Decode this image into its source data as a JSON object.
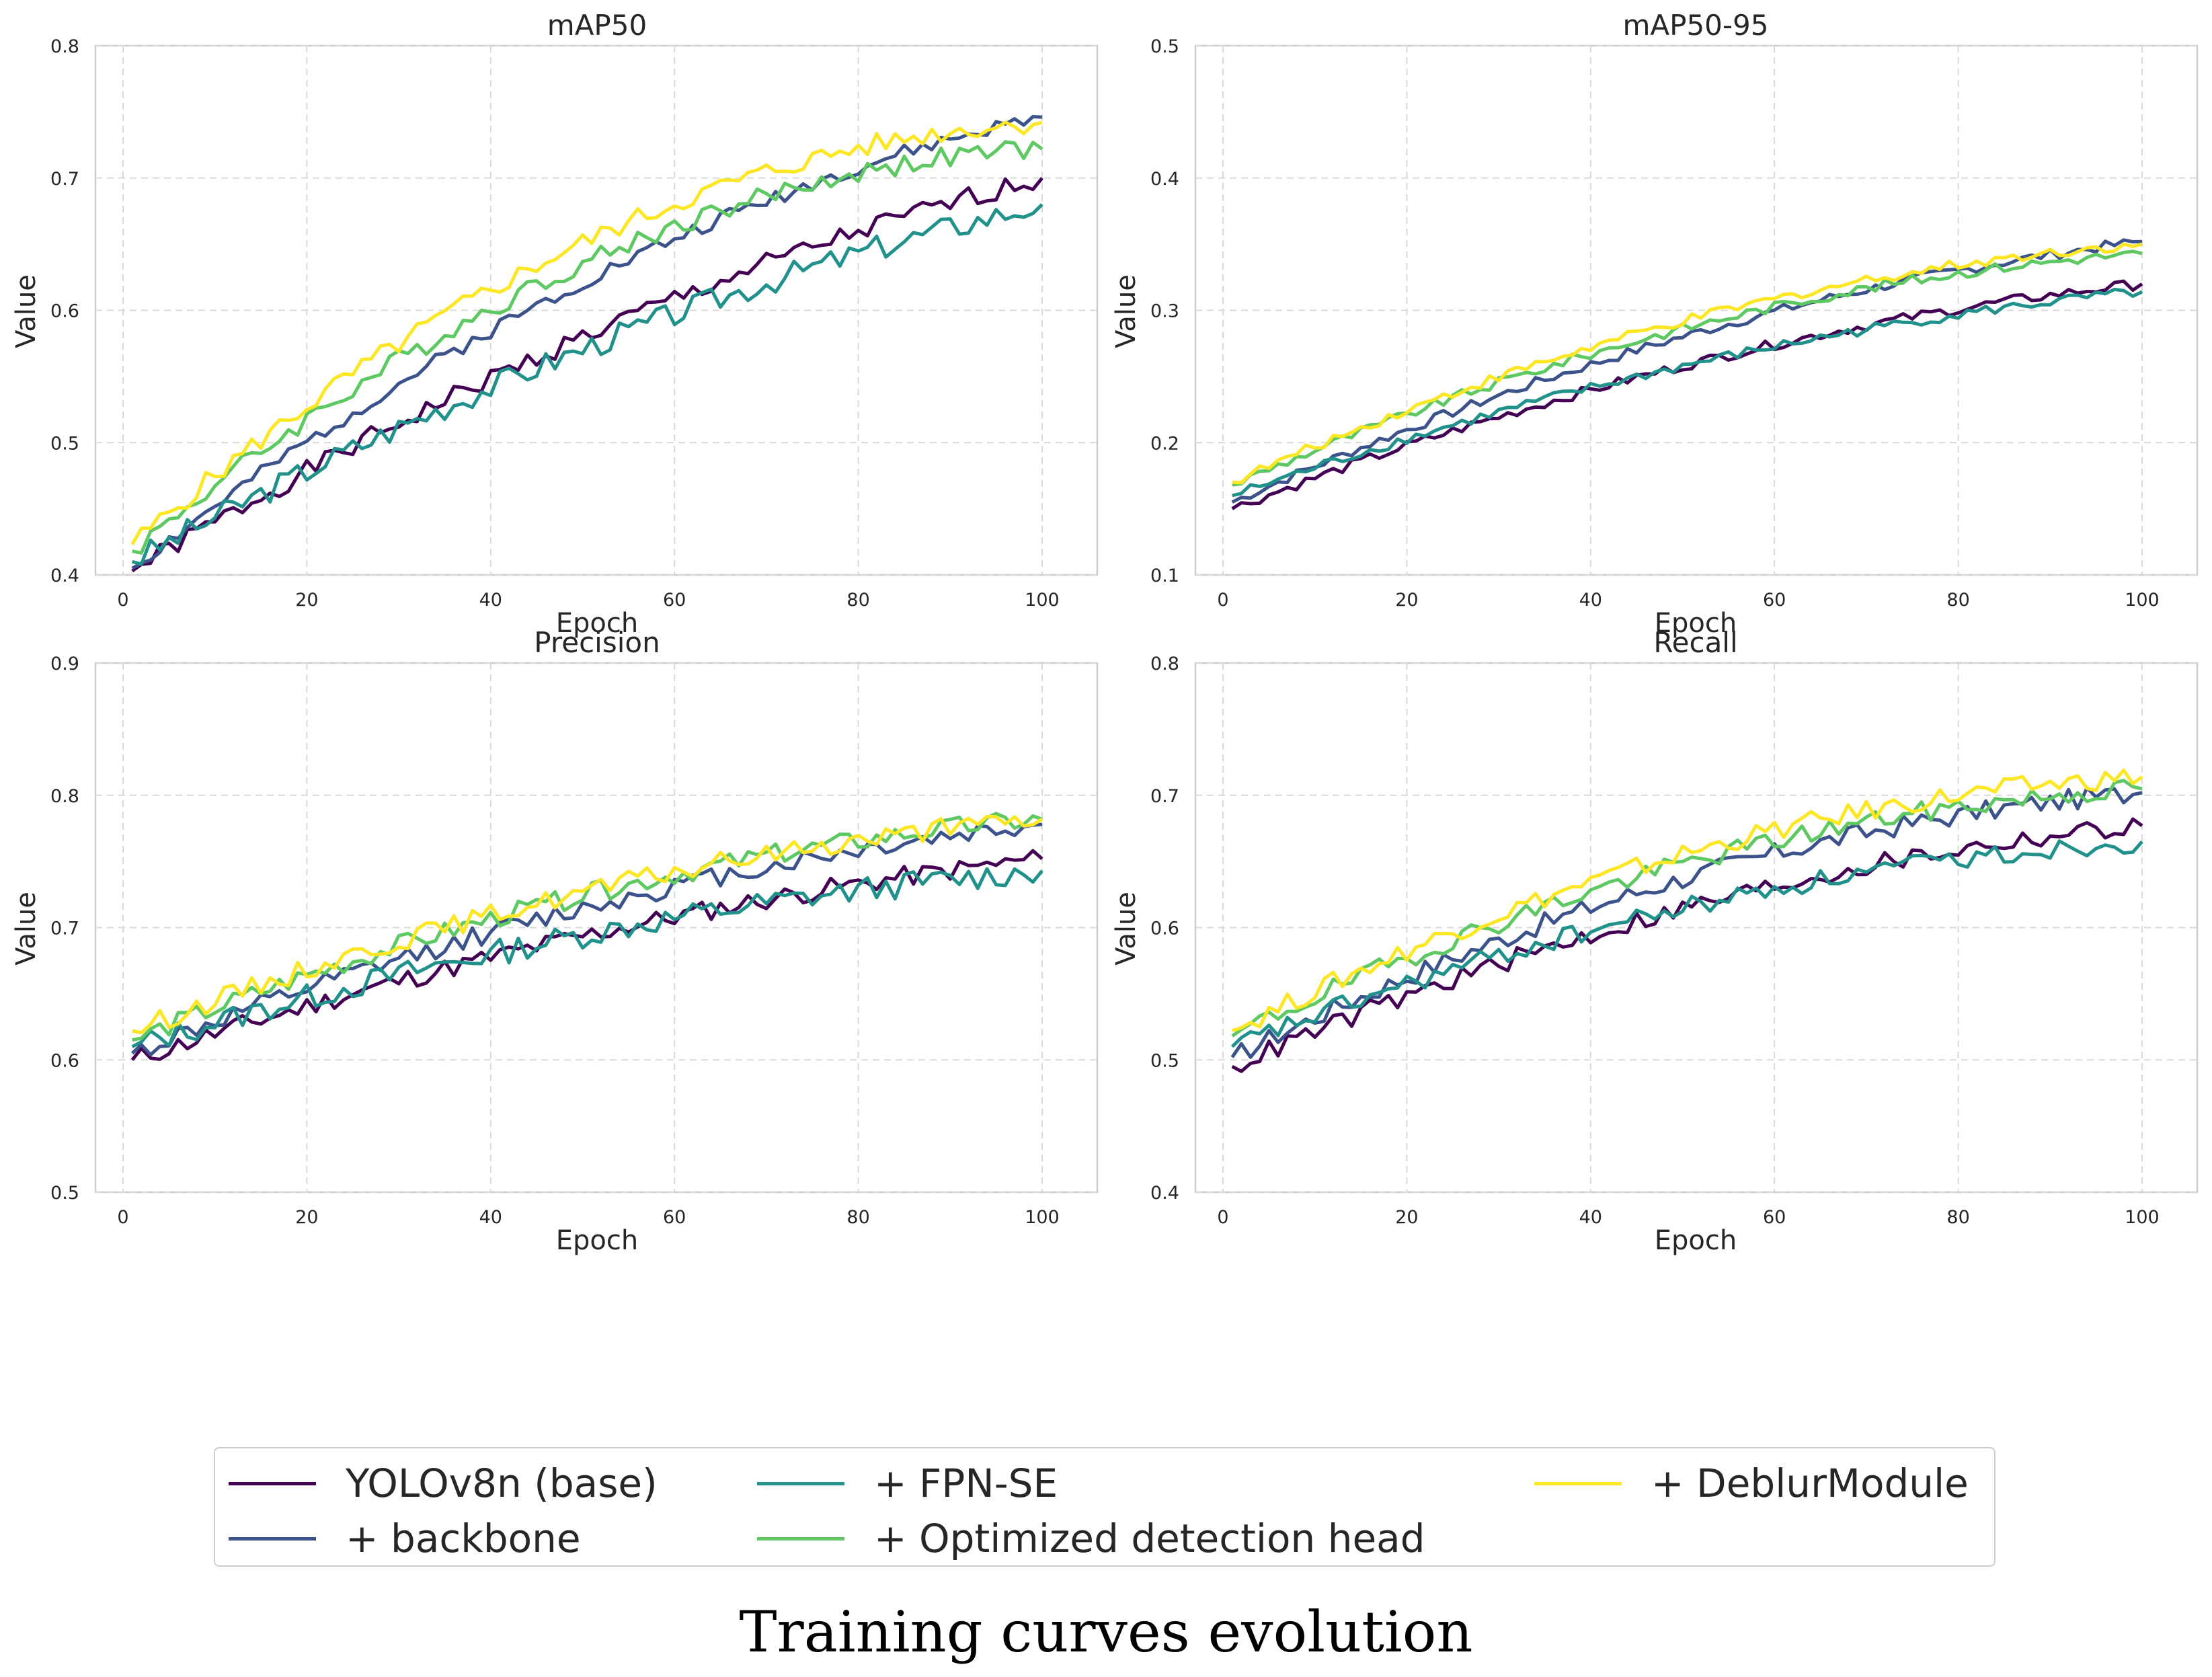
{
  "chart_data": [
    {
      "type": "line",
      "title": "mAP50",
      "xlabel": "Epoch",
      "ylabel": "Value",
      "xlim": [
        -3,
        106
      ],
      "ylim": [
        0.4,
        0.8
      ],
      "xticks": [
        "0",
        "20",
        "40",
        "60",
        "80",
        "100"
      ],
      "yticks": [
        "0.4",
        "0.5",
        "0.6",
        "0.7",
        "0.8"
      ],
      "grid": true,
      "x": [
        1,
        100
      ],
      "series": [
        {
          "name": "YOLOv8n (base)",
          "start": 0.403,
          "end": 0.7,
          "curve": 0.25,
          "noise": 0.004,
          "seed": 1
        },
        {
          "name": "+ backbone",
          "start": 0.405,
          "end": 0.746,
          "curve": 0.35,
          "noise": 0.003,
          "seed": 2
        },
        {
          "name": "+ FPN-SE",
          "start": 0.41,
          "end": 0.68,
          "curve": 0.25,
          "noise": 0.005,
          "seed": 3
        },
        {
          "name": "+ Optimized detection head",
          "start": 0.418,
          "end": 0.722,
          "curve": 0.55,
          "noise": 0.004,
          "seed": 4
        },
        {
          "name": "+ DeblurModule",
          "start": 0.423,
          "end": 0.742,
          "curve": 0.55,
          "noise": 0.004,
          "seed": 5
        }
      ]
    },
    {
      "type": "line",
      "title": "mAP50-95",
      "xlabel": "Epoch",
      "ylabel": "Value",
      "xlim": [
        -3,
        106
      ],
      "ylim": [
        0.1,
        0.5
      ],
      "xticks": [
        "0",
        "20",
        "40",
        "60",
        "80",
        "100"
      ],
      "yticks": [
        "0.1",
        "0.2",
        "0.3",
        "0.4",
        "0.5"
      ],
      "grid": true,
      "x": [
        1,
        100
      ],
      "series": [
        {
          "name": "YOLOv8n (base)",
          "start": 0.15,
          "end": 0.32,
          "curve": 0.35,
          "noise": 0.002,
          "seed": 6
        },
        {
          "name": "+ backbone",
          "start": 0.155,
          "end": 0.352,
          "curve": 0.35,
          "noise": 0.002,
          "seed": 7
        },
        {
          "name": "+ FPN-SE",
          "start": 0.16,
          "end": 0.314,
          "curve": 0.35,
          "noise": 0.002,
          "seed": 8
        },
        {
          "name": "+ Optimized detection head",
          "start": 0.168,
          "end": 0.343,
          "curve": 0.45,
          "noise": 0.002,
          "seed": 9
        },
        {
          "name": "+ DeblurModule",
          "start": 0.17,
          "end": 0.35,
          "curve": 0.45,
          "noise": 0.002,
          "seed": 10
        }
      ]
    },
    {
      "type": "line",
      "title": "Precision",
      "xlabel": "Epoch",
      "ylabel": "Value",
      "xlim": [
        -3,
        106
      ],
      "ylim": [
        0.5,
        0.9
      ],
      "xticks": [
        "0",
        "20",
        "40",
        "60",
        "80",
        "100"
      ],
      "yticks": [
        "0.5",
        "0.6",
        "0.7",
        "0.8",
        "0.9"
      ],
      "grid": true,
      "x": [
        1,
        100
      ],
      "series": [
        {
          "name": "YOLOv8n (base)",
          "start": 0.6,
          "end": 0.752,
          "curve": 0.3,
          "noise": 0.004,
          "seed": 11
        },
        {
          "name": "+ backbone",
          "start": 0.605,
          "end": 0.778,
          "curve": 0.35,
          "noise": 0.004,
          "seed": 12
        },
        {
          "name": "+ FPN-SE",
          "start": 0.61,
          "end": 0.743,
          "curve": 0.35,
          "noise": 0.005,
          "seed": 13
        },
        {
          "name": "+ Optimized detection head",
          "start": 0.615,
          "end": 0.782,
          "curve": 0.4,
          "noise": 0.004,
          "seed": 14
        },
        {
          "name": "+ DeblurModule",
          "start": 0.622,
          "end": 0.782,
          "curve": 0.4,
          "noise": 0.004,
          "seed": 15
        }
      ]
    },
    {
      "type": "line",
      "title": "Recall",
      "xlabel": "Epoch",
      "ylabel": "Value",
      "xlim": [
        -3,
        106
      ],
      "ylim": [
        0.4,
        0.8
      ],
      "xticks": [
        "0",
        "20",
        "40",
        "60",
        "80",
        "100"
      ],
      "yticks": [
        "0.4",
        "0.5",
        "0.6",
        "0.7",
        "0.8"
      ],
      "grid": true,
      "x": [
        1,
        100
      ],
      "series": [
        {
          "name": "YOLOv8n (base)",
          "start": 0.495,
          "end": 0.677,
          "curve": 0.4,
          "noise": 0.004,
          "seed": 16
        },
        {
          "name": "+ backbone",
          "start": 0.502,
          "end": 0.702,
          "curve": 0.45,
          "noise": 0.004,
          "seed": 17
        },
        {
          "name": "+ FPN-SE",
          "start": 0.51,
          "end": 0.665,
          "curve": 0.45,
          "noise": 0.004,
          "seed": 18
        },
        {
          "name": "+ Optimized detection head",
          "start": 0.518,
          "end": 0.705,
          "curve": 0.5,
          "noise": 0.004,
          "seed": 19
        },
        {
          "name": "+ DeblurModule",
          "start": 0.522,
          "end": 0.714,
          "curve": 0.5,
          "noise": 0.004,
          "seed": 20
        }
      ]
    }
  ],
  "legend": {
    "placement": "bottom-center",
    "items": [
      {
        "label": "YOLOv8n (base)",
        "color": "#440154"
      },
      {
        "label": "+ backbone",
        "color": "#3b528b"
      },
      {
        "label": "+ FPN-SE",
        "color": "#21918c"
      },
      {
        "label": "+ Optimized detection head",
        "color": "#5ec962"
      },
      {
        "label": "+ DeblurModule",
        "color": "#fde725"
      }
    ]
  },
  "caption": "Training curves evolution"
}
